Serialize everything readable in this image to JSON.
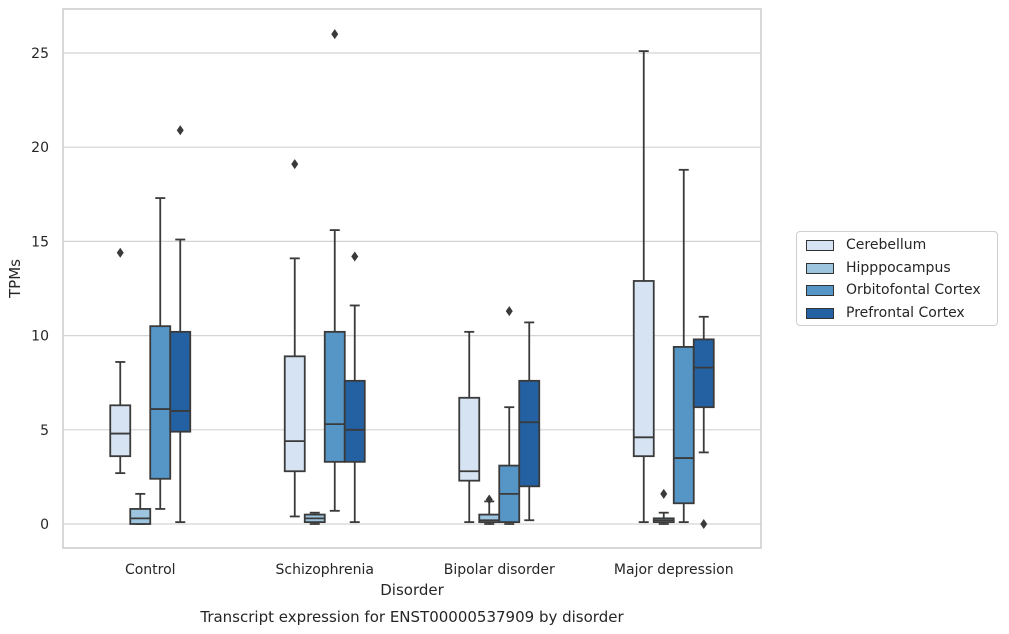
{
  "chart_data": {
    "type": "box",
    "title": "Transcript expression for ENST00000537909 by disorder",
    "xlabel": "Disorder",
    "ylabel": "TPMs",
    "ylim": [
      -1.2,
      27
    ],
    "yticks": [
      0,
      5,
      10,
      15,
      20,
      25
    ],
    "grid": "horizontal",
    "legend_position": "right",
    "categories": [
      "Control",
      "Schizophrenia",
      "Bipolar disorder",
      "Major depression"
    ],
    "series": [
      {
        "name": "Cerebellum",
        "color": "#d5e3f2",
        "boxes": [
          {
            "whisker_low": 2.7,
            "q1": 3.6,
            "median": 4.8,
            "q3": 6.3,
            "whisker_high": 8.6,
            "outliers": [
              14.4
            ]
          },
          {
            "whisker_low": 0.4,
            "q1": 2.8,
            "median": 4.4,
            "q3": 8.9,
            "whisker_high": 14.1,
            "outliers": [
              19.1
            ]
          },
          {
            "whisker_low": 0.1,
            "q1": 2.3,
            "median": 2.8,
            "q3": 6.7,
            "whisker_high": 10.2,
            "outliers": []
          },
          {
            "whisker_low": 0.1,
            "q1": 3.6,
            "median": 4.6,
            "q3": 12.9,
            "whisker_high": 25.1,
            "outliers": []
          }
        ]
      },
      {
        "name": "Hipppocampus",
        "color": "#9dc5e0",
        "boxes": [
          {
            "whisker_low": 0.0,
            "q1": 0.0,
            "median": 0.3,
            "q3": 0.8,
            "whisker_high": 1.6,
            "outliers": []
          },
          {
            "whisker_low": 0.0,
            "q1": 0.1,
            "median": 0.3,
            "q3": 0.5,
            "whisker_high": 0.6,
            "outliers": []
          },
          {
            "whisker_low": 0.0,
            "q1": 0.1,
            "median": 0.2,
            "q3": 0.5,
            "whisker_high": 1.2,
            "outliers": [
              1.3
            ]
          },
          {
            "whisker_low": 0.0,
            "q1": 0.1,
            "median": 0.2,
            "q3": 0.3,
            "whisker_high": 0.6,
            "outliers": [
              1.6
            ]
          }
        ]
      },
      {
        "name": "Orbitofontal Cortex",
        "color": "#5696c6",
        "boxes": [
          {
            "whisker_low": 0.8,
            "q1": 2.4,
            "median": 6.1,
            "q3": 10.5,
            "whisker_high": 17.3,
            "outliers": []
          },
          {
            "whisker_low": 0.7,
            "q1": 3.3,
            "median": 5.3,
            "q3": 10.2,
            "whisker_high": 15.6,
            "outliers": [
              26.0
            ]
          },
          {
            "whisker_low": 0.0,
            "q1": 0.1,
            "median": 1.6,
            "q3": 3.1,
            "whisker_high": 6.2,
            "outliers": [
              11.3
            ]
          },
          {
            "whisker_low": 0.1,
            "q1": 1.1,
            "median": 3.5,
            "q3": 9.4,
            "whisker_high": 18.8,
            "outliers": []
          }
        ]
      },
      {
        "name": "Prefrontal Cortex",
        "color": "#2461a3",
        "boxes": [
          {
            "whisker_low": 0.1,
            "q1": 4.9,
            "median": 6.0,
            "q3": 10.2,
            "whisker_high": 15.1,
            "outliers": [
              20.9
            ]
          },
          {
            "whisker_low": 0.1,
            "q1": 3.3,
            "median": 5.0,
            "q3": 7.6,
            "whisker_high": 11.6,
            "outliers": [
              14.2
            ]
          },
          {
            "whisker_low": 0.2,
            "q1": 2.0,
            "median": 5.4,
            "q3": 7.6,
            "whisker_high": 10.7,
            "outliers": []
          },
          {
            "whisker_low": 3.8,
            "q1": 6.2,
            "median": 8.3,
            "q3": 9.8,
            "whisker_high": 11.0,
            "outliers": [
              0.0
            ]
          }
        ]
      }
    ]
  }
}
